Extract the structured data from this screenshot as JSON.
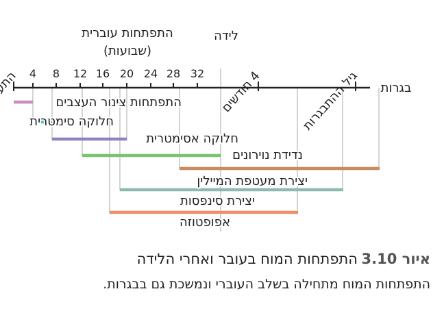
{
  "figure": {
    "header_prenatal_line1": "התפתחות עוברית",
    "header_prenatal_line2": "(שבועות)",
    "label_conception": "התעברות",
    "label_birth": "לידה",
    "label_4months": "4 חודשים",
    "label_adolescence": "גיל ההתבגרות",
    "label_adulthood": "בגרות",
    "week_ticks": [
      "4",
      "8",
      "12",
      "16",
      "20",
      "24",
      "28",
      "32"
    ],
    "colors": {
      "neural_tube": "#c98bc0",
      "symmetric_division": "#4fc3d6",
      "asymmetric_division": "#8a86c2",
      "neuron_migration": "#7cc46f",
      "myelin": "#c98b60",
      "synapse_formation": "#8fb8b0",
      "apoptosis": "#f08c64",
      "axis": "#222222",
      "guide": "#aaaaaa"
    },
    "bars": [
      {
        "key": "neural_tube",
        "label": "התפתחות צינור העצבים"
      },
      {
        "key": "symmetric_division",
        "label": "חלוקה סימטרית"
      },
      {
        "key": "asymmetric_division",
        "label": "חלוקה אסימטרית"
      },
      {
        "key": "neuron_migration",
        "label": "נדידת נוירונים"
      },
      {
        "key": "myelin",
        "label": "יצירת מעטפת המיילין"
      },
      {
        "key": "synapse_formation",
        "label": "יצירת סינפסות"
      },
      {
        "key": "apoptosis",
        "label": "אפופטוזה"
      }
    ]
  },
  "caption": {
    "number": "איור 3.10",
    "title": "התפתחות המוח בעובר ואחרי הלידה",
    "description": "התפתחות המוח מתחילה בשלב העוברי ונמשכת גם בבגרות."
  }
}
